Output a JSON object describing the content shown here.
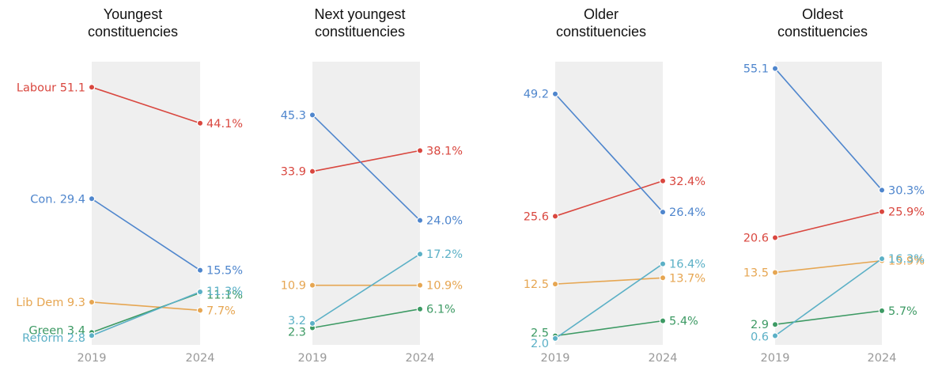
{
  "chart_data": [
    {
      "type": "line",
      "title": [
        "Youngest",
        "constituencies"
      ],
      "x": [
        "2019",
        "2024"
      ],
      "series": [
        {
          "name": "Labour",
          "party": "labour",
          "values": [
            51.1,
            44.1
          ],
          "labels": [
            "Labour 51.1",
            "44.1%"
          ]
        },
        {
          "name": "Con.",
          "party": "con",
          "values": [
            29.4,
            15.5
          ],
          "labels": [
            "Con. 29.4",
            "15.5%"
          ]
        },
        {
          "name": "Lib Dem",
          "party": "libdem",
          "values": [
            9.3,
            7.7
          ],
          "labels": [
            "Lib Dem 9.3",
            "7.7%"
          ]
        },
        {
          "name": "Green",
          "party": "green",
          "values": [
            3.4,
            11.1
          ],
          "labels": [
            "Green 3.4",
            "11.1%"
          ]
        },
        {
          "name": "Reform",
          "party": "reform",
          "values": [
            2.8,
            11.3
          ],
          "labels": [
            "Reform 2.8",
            "11.3%"
          ]
        }
      ]
    },
    {
      "type": "line",
      "title": [
        "Next youngest",
        "constituencies"
      ],
      "x": [
        "2019",
        "2024"
      ],
      "series": [
        {
          "party": "labour",
          "values": [
            33.9,
            38.1
          ],
          "labels": [
            "33.9",
            "38.1%"
          ]
        },
        {
          "party": "con",
          "values": [
            45.3,
            24.0
          ],
          "labels": [
            "45.3",
            "24.0%"
          ]
        },
        {
          "party": "libdem",
          "values": [
            10.9,
            10.9
          ],
          "labels": [
            "10.9",
            "10.9%"
          ]
        },
        {
          "party": "green",
          "values": [
            2.3,
            6.1
          ],
          "labels": [
            "2.3",
            "6.1%"
          ]
        },
        {
          "party": "reform",
          "values": [
            3.2,
            17.2
          ],
          "labels": [
            "3.2",
            "17.2%"
          ]
        }
      ]
    },
    {
      "type": "line",
      "title": [
        "Older",
        "constituencies"
      ],
      "x": [
        "2019",
        "2024"
      ],
      "series": [
        {
          "party": "labour",
          "values": [
            25.6,
            32.4
          ],
          "labels": [
            "25.6",
            "32.4%"
          ]
        },
        {
          "party": "con",
          "values": [
            49.2,
            26.4
          ],
          "labels": [
            "49.2",
            "26.4%"
          ]
        },
        {
          "party": "libdem",
          "values": [
            12.5,
            13.7
          ],
          "labels": [
            "12.5",
            "13.7%"
          ]
        },
        {
          "party": "green",
          "values": [
            2.5,
            5.4
          ],
          "labels": [
            "2.5",
            "5.4%"
          ]
        },
        {
          "party": "reform",
          "values": [
            2.0,
            16.4
          ],
          "labels": [
            "2.0",
            "16.4%"
          ]
        }
      ]
    },
    {
      "type": "line",
      "title": [
        "Oldest",
        "constituencies"
      ],
      "x": [
        "2019",
        "2024"
      ],
      "series": [
        {
          "party": "labour",
          "values": [
            20.6,
            25.9
          ],
          "labels": [
            "20.6",
            "25.9%"
          ]
        },
        {
          "party": "con",
          "values": [
            55.1,
            30.3
          ],
          "labels": [
            "55.1",
            "30.3%"
          ]
        },
        {
          "party": "libdem",
          "values": [
            13.5,
            15.9
          ],
          "labels": [
            "13.5",
            "15.9%"
          ]
        },
        {
          "party": "green",
          "values": [
            2.9,
            5.7
          ],
          "labels": [
            "2.9",
            "5.7%"
          ]
        },
        {
          "party": "reform",
          "values": [
            0.6,
            16.3
          ],
          "labels": [
            "0.6",
            "16.3%"
          ]
        }
      ]
    }
  ],
  "colors": {
    "labour": "#d9473f",
    "con": "#4f86cd",
    "libdem": "#e6a652",
    "green": "#3d9a64",
    "reform": "#5bb0c6",
    "panel_bg": "#efefef",
    "axis_text": "#999999",
    "title_text": "#121212"
  }
}
